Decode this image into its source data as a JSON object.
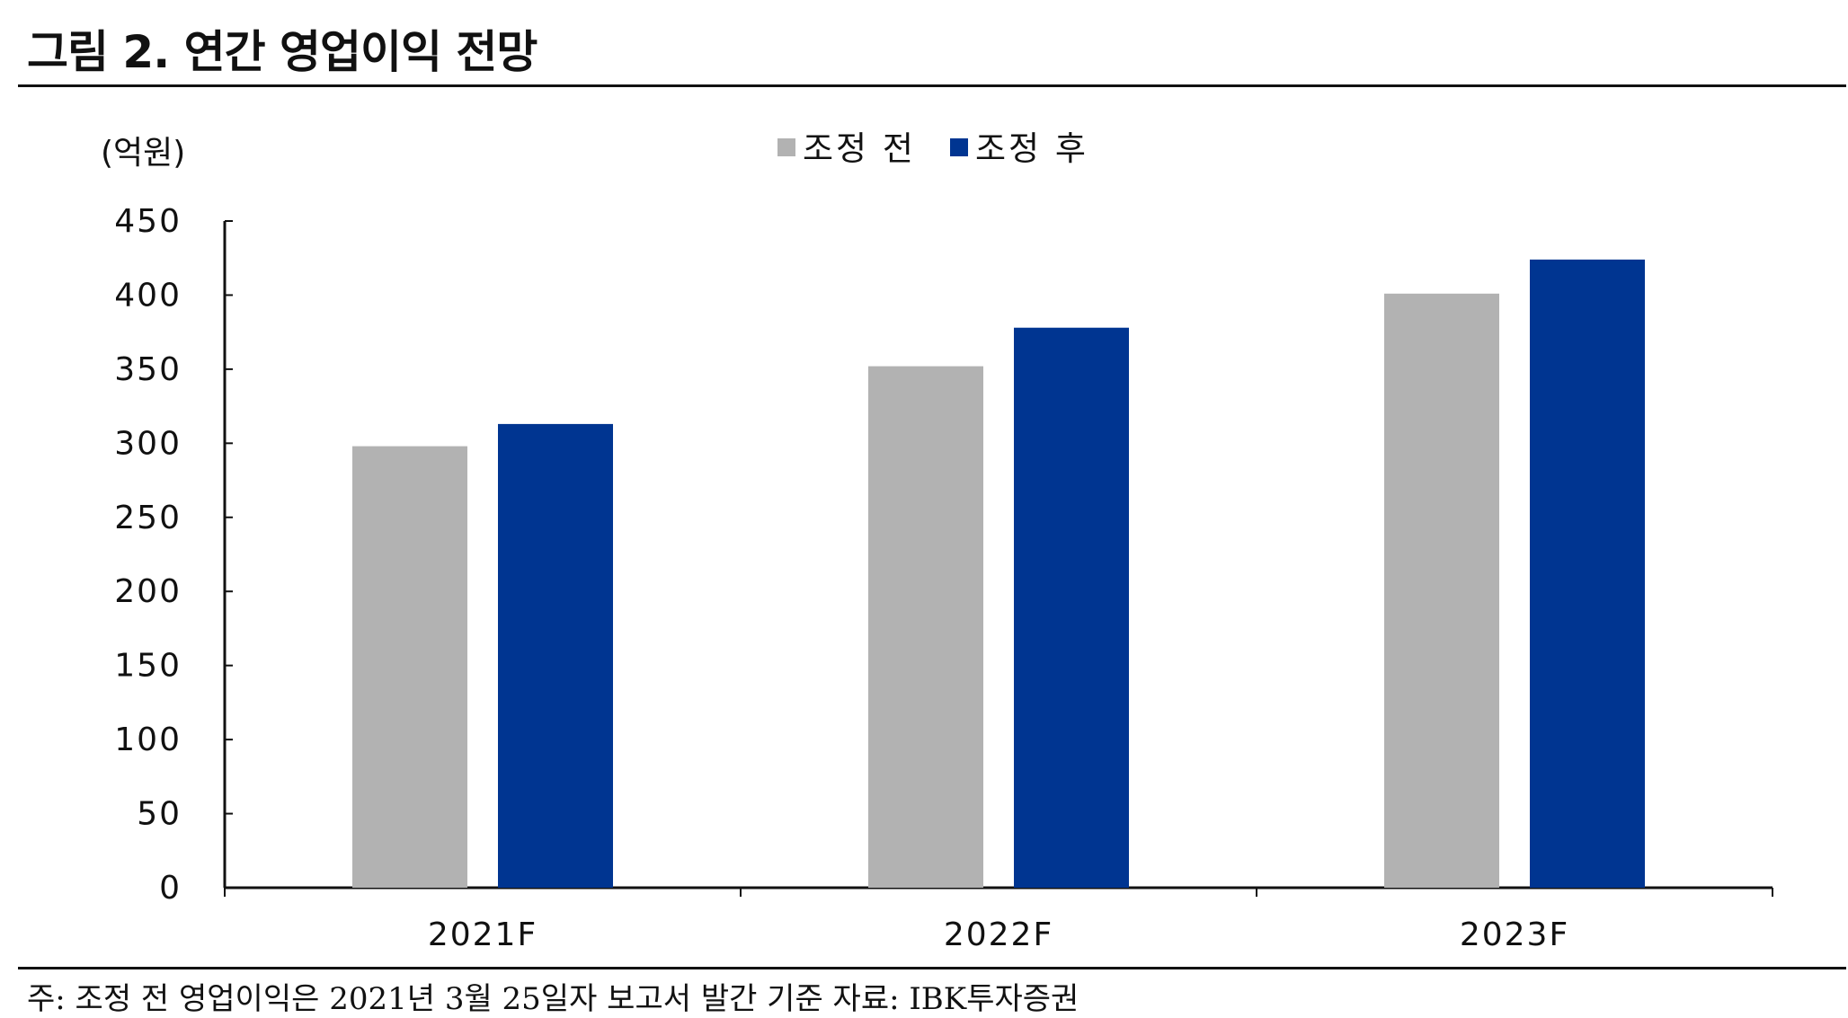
{
  "figure": {
    "title": "그림 2. 연간 영업이익 전망",
    "footnote": "주: 조정 전 영업이익은 2021년 3월 25일자 보고서 발간 기준 자료: IBK투자증권"
  },
  "chart_data": {
    "type": "bar",
    "title": "그림 2. 연간 영업이익 전망",
    "ylabel": "(억원)",
    "xlabel": "",
    "categories": [
      "2021F",
      "2022F",
      "2023F"
    ],
    "series": [
      {
        "name": "조정 전",
        "values": [
          298,
          352,
          401
        ],
        "color": "#B2B2B2"
      },
      {
        "name": "조정 후",
        "values": [
          313,
          378,
          424
        ],
        "color": "#003591"
      }
    ],
    "ylim": [
      0,
      450
    ],
    "yticks": [
      0,
      50,
      100,
      150,
      200,
      250,
      300,
      350,
      400,
      450
    ],
    "legend": "top-center",
    "grid": false
  }
}
